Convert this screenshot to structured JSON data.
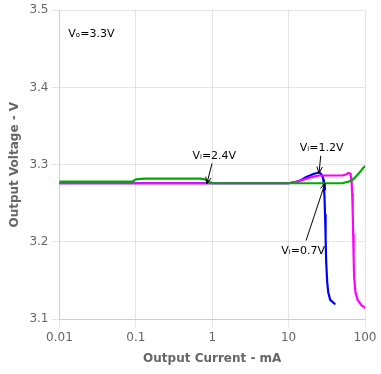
{
  "chart_data": {
    "type": "line",
    "x_label": "Output Current - mA",
    "y_label": "Output Voltage - V",
    "log": "x",
    "grid": true,
    "xlim": [
      0.01,
      100
    ],
    "xticks": [
      0.01,
      0.1,
      1,
      10,
      100
    ],
    "ylim": [
      3.1,
      3.5
    ],
    "yticks": [
      3.1,
      3.2,
      3.3,
      3.4,
      3.5
    ],
    "series": [
      {
        "color": "#00aa00",
        "x": [
          0.01,
          0.09,
          0.1,
          0.13,
          0.15,
          0.2,
          0.5,
          0.7,
          0.8,
          1.0,
          2.0,
          5.0,
          10.0,
          20.0,
          30.0,
          40.0,
          50.0,
          60.0,
          65.0,
          70.0,
          75.0,
          80.0,
          85.0,
          90.0,
          95.0,
          100.0
        ],
        "values": [
          3.278,
          3.278,
          3.281,
          3.282,
          3.282,
          3.282,
          3.282,
          3.282,
          3.281,
          3.276,
          3.276,
          3.276,
          3.276,
          3.276,
          3.276,
          3.276,
          3.276,
          3.278,
          3.279,
          3.281,
          3.284,
          3.287,
          3.29,
          3.293,
          3.296,
          3.298
        ]
      },
      {
        "color": "#ff00ff",
        "x": [
          0.01,
          0.5,
          1.0,
          5.0,
          8.0,
          10.0,
          13.0,
          16.0,
          20.0,
          25.0,
          30.0,
          35.0,
          40.0,
          45.0,
          50.0,
          55.0,
          58.0,
          60.0,
          62.0,
          63.0,
          64.0,
          65.0,
          66.0,
          67.0,
          68.0,
          69.0,
          70.0,
          71.0,
          72.0,
          75.0,
          80.0,
          90.0,
          100.0
        ],
        "values": [
          3.276,
          3.276,
          3.276,
          3.276,
          3.276,
          3.276,
          3.278,
          3.281,
          3.284,
          3.286,
          3.286,
          3.286,
          3.286,
          3.286,
          3.286,
          3.287,
          3.288,
          3.289,
          3.289,
          3.289,
          3.288,
          3.286,
          3.282,
          3.274,
          3.262,
          3.24,
          3.21,
          3.18,
          3.155,
          3.135,
          3.125,
          3.118,
          3.115
        ]
      },
      {
        "color": "#0000ff",
        "x": [
          0.01,
          0.5,
          1.0,
          5.0,
          8.0,
          10.0,
          13.0,
          15.0,
          17.0,
          19.0,
          21.0,
          23.0,
          25.0,
          26.0,
          27.0,
          28.0,
          28.5,
          29.0,
          29.5,
          30.0,
          30.5,
          31.0,
          32.0,
          33.0,
          35.0,
          40.0
        ],
        "values": [
          3.276,
          3.276,
          3.276,
          3.276,
          3.276,
          3.276,
          3.278,
          3.281,
          3.284,
          3.286,
          3.288,
          3.289,
          3.29,
          3.289,
          3.287,
          3.284,
          3.28,
          3.272,
          3.258,
          3.235,
          3.205,
          3.175,
          3.148,
          3.135,
          3.125,
          3.12
        ]
      }
    ],
    "annotations": [
      {
        "text": "Vₒ=3.3V",
        "x": 0.013,
        "y": 3.465
      },
      {
        "text": "Vᵢ=2.4V",
        "x": 0.55,
        "y": 3.308,
        "arrow_x": 0.85,
        "arrow_y": 3.2755
      },
      {
        "text": "Vᵢ=1.2V",
        "x": 14.0,
        "y": 3.318,
        "arrow_x": 25.0,
        "arrow_y": 3.289
      },
      {
        "text": "Vᵢ=0.7V",
        "x": 8.0,
        "y": 3.185,
        "arrow_x": 30.0,
        "arrow_y": 3.276
      }
    ]
  }
}
